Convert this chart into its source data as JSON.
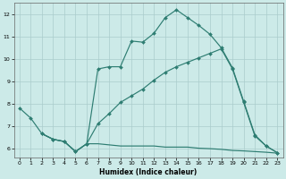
{
  "xlabel": "Humidex (Indice chaleur)",
  "bg_color": "#cceae8",
  "grid_color": "#aacccc",
  "line_color": "#2e7d72",
  "xlim": [
    -0.5,
    23.5
  ],
  "ylim": [
    5.6,
    12.5
  ],
  "xticks": [
    0,
    1,
    2,
    3,
    4,
    5,
    6,
    7,
    8,
    9,
    10,
    11,
    12,
    13,
    14,
    15,
    16,
    17,
    18,
    19,
    20,
    21,
    22,
    23
  ],
  "yticks": [
    6,
    7,
    8,
    9,
    10,
    11,
    12
  ],
  "line1_x": [
    0,
    1,
    2,
    3,
    4,
    5,
    6,
    7,
    8,
    9,
    10,
    11,
    12,
    13,
    14,
    15,
    16,
    17,
    18,
    19,
    20,
    21,
    22,
    23
  ],
  "line1_y": [
    7.8,
    7.35,
    6.65,
    6.4,
    6.3,
    5.85,
    6.2,
    7.1,
    7.55,
    8.05,
    8.35,
    8.65,
    9.05,
    9.4,
    9.65,
    9.85,
    10.05,
    10.25,
    10.45,
    9.55,
    8.05,
    6.55,
    6.1,
    5.8
  ],
  "line2_x": [
    2,
    3,
    4,
    5,
    6,
    7,
    8,
    9,
    10,
    11,
    12,
    13,
    14,
    15,
    16,
    17,
    18,
    19,
    20,
    21,
    22,
    23
  ],
  "line2_y": [
    6.65,
    6.4,
    6.3,
    5.85,
    6.2,
    9.55,
    9.65,
    9.65,
    10.8,
    10.75,
    11.15,
    11.85,
    12.2,
    11.85,
    11.5,
    11.1,
    10.5,
    9.6,
    8.1,
    6.6,
    6.1,
    5.8
  ],
  "line3_x": [
    2,
    3,
    4,
    5,
    6,
    7,
    8,
    9,
    10,
    11,
    12,
    13,
    14,
    15,
    16,
    17,
    18,
    19,
    20,
    21,
    22,
    23
  ],
  "line3_y": [
    6.65,
    6.4,
    6.3,
    5.85,
    6.2,
    6.2,
    6.15,
    6.1,
    6.1,
    6.1,
    6.1,
    6.05,
    6.05,
    6.05,
    6.0,
    5.98,
    5.95,
    5.9,
    5.88,
    5.85,
    5.82,
    5.78
  ]
}
